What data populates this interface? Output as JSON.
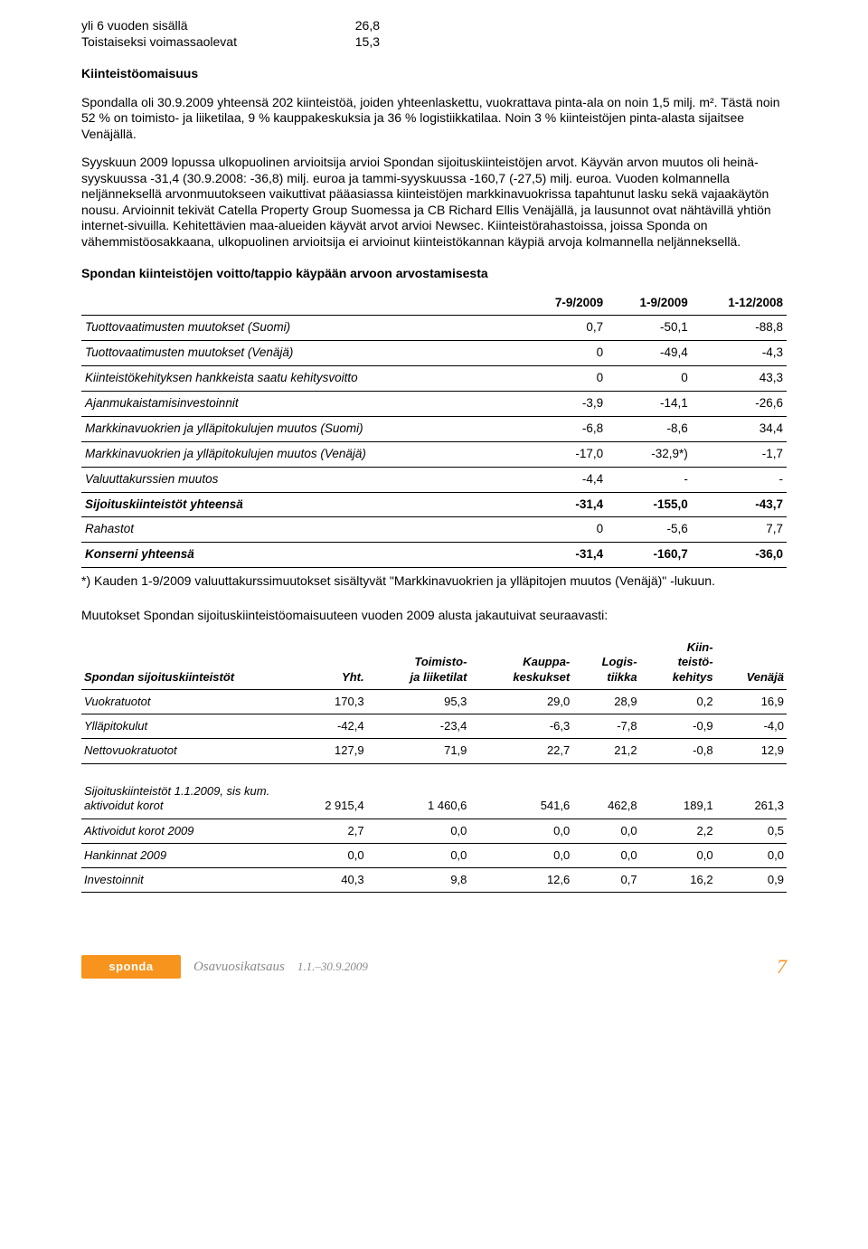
{
  "top_rows": [
    {
      "label": "yli 6 vuoden sisällä",
      "value": "26,8"
    },
    {
      "label": "Toistaiseksi voimassaolevat",
      "value": "15,3"
    }
  ],
  "heading_kiinteisto": "Kiinteistöomaisuus",
  "para1": "Spondalla oli 30.9.2009 yhteensä 202 kiinteistöä, joiden yhteenlaskettu, vuokrattava pinta-ala on noin 1,5 milj. m². Tästä noin 52 % on toimisto- ja liiketilaa, 9 % kauppakeskuksia ja 36 % logistiikkatilaa. Noin 3 % kiinteistöjen pinta-alasta sijaitsee Venäjällä.",
  "para2": "Syyskuun 2009 lopussa ulkopuolinen arvioitsija arvioi Spondan sijoituskiinteistöjen arvot. Käyvän arvon muutos oli heinä-syyskuussa -31,4 (30.9.2008: -36,8) milj. euroa ja tammi-syyskuussa -160,7 (-27,5) milj. euroa. Vuoden kolmannella neljänneksellä arvonmuutokseen vaikuttivat pääasiassa kiinteistöjen markkinavuokrissa tapahtunut lasku sekä vajaakäytön nousu. Arvioinnit tekivät Catella Property Group Suomessa ja CB Richard Ellis Venäjällä, ja lausunnot ovat nähtävillä yhtiön internet-sivuilla. Kehitettävien maa-alueiden käyvät arvot arvioi Newsec. Kiinteistörahastoissa, joissa Sponda on vähemmistöosakkaana, ulkopuolinen arvioitsija ei arvioinut kiinteistökannan käypiä arvoja kolmannella neljänneksellä.",
  "table1_heading": "Spondan kiinteistöjen voitto/tappio käypään arvoon arvostamisesta",
  "table1": {
    "cols": [
      "",
      "7-9/2009",
      "1-9/2009",
      "1-12/2008"
    ],
    "rows": [
      {
        "label": "Tuottovaatimusten muutokset (Suomi)",
        "c": [
          "0,7",
          "-50,1",
          "-88,8"
        ],
        "italic": true
      },
      {
        "label": "Tuottovaatimusten muutokset (Venäjä)",
        "c": [
          "0",
          "-49,4",
          "-4,3"
        ],
        "italic": true
      },
      {
        "label": "Kiinteistökehityksen hankkeista saatu kehitysvoitto",
        "c": [
          "0",
          "0",
          "43,3"
        ],
        "italic": true
      },
      {
        "label": "Ajanmukaistamisinvestoinnit",
        "c": [
          "-3,9",
          "-14,1",
          "-26,6"
        ],
        "italic": true
      },
      {
        "label": "Markkinavuokrien ja ylläpitokulujen muutos (Suomi)",
        "c": [
          "-6,8",
          "-8,6",
          "34,4"
        ],
        "italic": true
      },
      {
        "label": "Markkinavuokrien ja ylläpitokulujen muutos (Venäjä)",
        "c": [
          "-17,0",
          "-32,9*)",
          "-1,7"
        ],
        "italic": true
      },
      {
        "label": "Valuuttakurssien muutos",
        "c": [
          "-4,4",
          "-",
          "-"
        ],
        "italic": true
      },
      {
        "label": "Sijoituskiinteistöt yhteensä",
        "c": [
          "-31,4",
          "-155,0",
          "-43,7"
        ],
        "italic": true,
        "bold": true
      },
      {
        "label": "Rahastot",
        "c": [
          "0",
          "-5,6",
          "7,7"
        ],
        "italic": true
      },
      {
        "label": "Konserni yhteensä",
        "c": [
          "-31,4",
          "-160,7",
          "-36,0"
        ],
        "italic": true,
        "bold": true
      }
    ]
  },
  "footnote1": "*) Kauden 1-9/2009 valuuttakurssimuutokset sisältyvät \"Markkinavuokrien ja ylläpitojen muutos (Venäjä)\" -lukuun.",
  "para3": "Muutokset Spondan sijoituskiinteistöomaisuuteen vuoden 2009 alusta jakautuivat seuraavasti:",
  "table2": {
    "cols": [
      "Spondan sijoituskiinteistöt",
      "Yht.",
      "Toimisto- ja liiketilat",
      "Kauppa-keskukset",
      "Logis-tiikka",
      "Kiin-teistö-kehitys",
      "Venäjä"
    ],
    "rows": [
      {
        "label": "Vuokratuotot",
        "c": [
          "170,3",
          "95,3",
          "29,0",
          "28,9",
          "0,2",
          "16,9"
        ],
        "italic": true
      },
      {
        "label": "Ylläpitokulut",
        "c": [
          "-42,4",
          "-23,4",
          "-6,3",
          "-7,8",
          "-0,9",
          "-4,0"
        ],
        "italic": true
      },
      {
        "label": "Nettovuokratuotot",
        "c": [
          "127,9",
          "71,9",
          "22,7",
          "21,2",
          "-0,8",
          "12,9"
        ],
        "italic": true
      }
    ],
    "rows2": [
      {
        "label": "Sijoituskiinteistöt 1.1.2009, sis kum. aktivoidut korot",
        "c": [
          "2 915,4",
          "1 460,6",
          "541,6",
          "462,8",
          "189,1",
          "261,3"
        ],
        "italic": true
      },
      {
        "label": "Aktivoidut korot 2009",
        "c": [
          "2,7",
          "0,0",
          "0,0",
          "0,0",
          "2,2",
          "0,5"
        ],
        "italic": true
      },
      {
        "label": "Hankinnat 2009",
        "c": [
          "0,0",
          "0,0",
          "0,0",
          "0,0",
          "0,0",
          "0,0"
        ],
        "italic": true
      },
      {
        "label": "Investoinnit",
        "c": [
          "40,3",
          "9,8",
          "12,6",
          "0,7",
          "16,2",
          "0,9"
        ],
        "italic": true
      }
    ]
  },
  "footer": {
    "logo_text": "sponda",
    "subtitle": "Osavuosikatsaus",
    "date_range": "1.1.–30.9.2009",
    "page": "7"
  },
  "colors": {
    "orange": "#f7941d",
    "grey": "#8a8a8a"
  }
}
